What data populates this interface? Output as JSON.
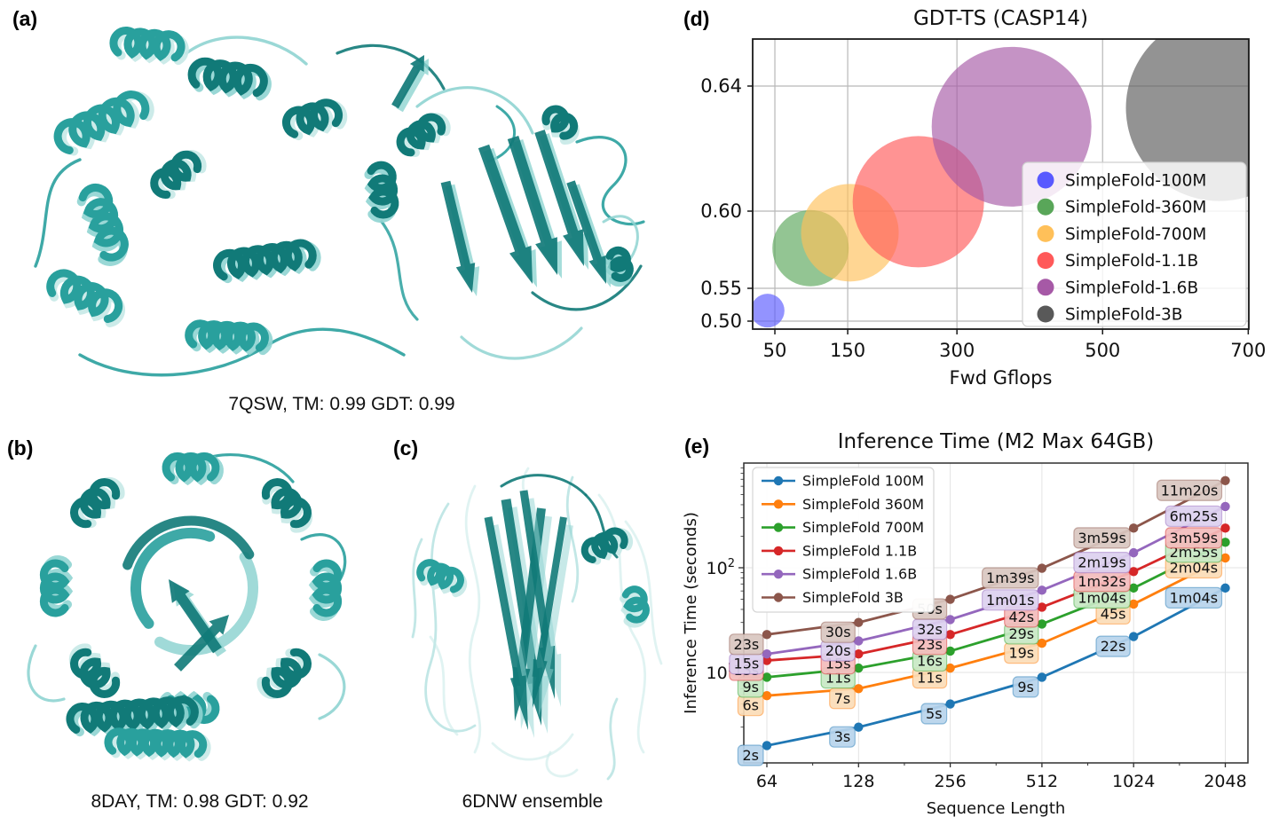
{
  "figure": {
    "background": "#ffffff"
  },
  "panels": {
    "a": {
      "letter": "(a)",
      "caption": "7QSW, TM: 0.99 GDT: 0.99"
    },
    "b": {
      "letter": "(b)",
      "caption": "8DAY, TM: 0.98 GDT: 0.92"
    },
    "c": {
      "letter": "(c)",
      "caption": "6DNW ensemble"
    },
    "d": {
      "letter": "(d)"
    },
    "e": {
      "letter": "(e)"
    }
  },
  "protein_colors": {
    "dark": "#117a78",
    "mid": "#29a09d",
    "light": "#8fd4d1",
    "pale": "#c6e9e7"
  },
  "chart_data": [
    {
      "id": "gdt_bubble",
      "type": "scatter",
      "title": "GDT-TS (CASP14)",
      "xlabel": "Fwd Gflops",
      "ylabel": "",
      "x_ticks": [
        50,
        150,
        300,
        500,
        700
      ],
      "x_tick_labels": [
        "50",
        "150",
        "300",
        "500",
        "700"
      ],
      "y_ticks": [
        0.5,
        0.55,
        0.6,
        0.64
      ],
      "y_tick_labels": [
        "0.50",
        "0.55",
        "0.60",
        "0.64"
      ],
      "xlim": [
        20,
        700
      ],
      "ylim": [
        0.497,
        0.66
      ],
      "grid": true,
      "legend_position": "lower right",
      "series": [
        {
          "name": "SimpleFold-100M",
          "color": "#5959ff",
          "x": 40,
          "y": 0.516,
          "size": 19
        },
        {
          "name": "SimpleFold-360M",
          "color": "#59a659",
          "x": 99,
          "y": 0.576,
          "size": 43
        },
        {
          "name": "SimpleFold-700M",
          "color": "#ffc059",
          "x": 153,
          "y": 0.586,
          "size": 55
        },
        {
          "name": "SimpleFold-1.1B",
          "color": "#ff5959",
          "x": 247,
          "y": 0.603,
          "size": 74
        },
        {
          "name": "SimpleFold-1.6B",
          "color": "#a659a6",
          "x": 375,
          "y": 0.627,
          "size": 90
        },
        {
          "name": "SimpleFold-3B",
          "color": "#595959",
          "x": 660,
          "y": 0.633,
          "size": 105
        }
      ]
    },
    {
      "id": "inference_time",
      "type": "line",
      "title": "Inference Time (M2 Max 64GB)",
      "xlabel": "Sequence Length",
      "ylabel": "Inference Time (seconds)",
      "x": [
        64,
        128,
        256,
        512,
        1024,
        2048
      ],
      "x_tick_labels": [
        "64",
        "128",
        "256",
        "512",
        "1024",
        "2048"
      ],
      "x_scale": "log2",
      "y_scale": "log10",
      "y_ticks": [
        10,
        100
      ],
      "y_tick_labels": [
        {
          "base": "10",
          "exp": "1"
        },
        {
          "base": "10",
          "exp": "2"
        }
      ],
      "ylim": [
        1.4,
        1000
      ],
      "grid": true,
      "legend_position": "upper left",
      "series": [
        {
          "name": "SimpleFold 100M",
          "color": "#1f77b4",
          "tint": "#b7d4ec",
          "values_s": [
            2,
            3,
            5,
            9,
            22,
            64
          ],
          "labels": [
            "2s",
            "3s",
            "5s",
            "9s",
            "22s",
            "1m04s"
          ]
        },
        {
          "name": "SimpleFold 360M",
          "color": "#ff7f0e",
          "tint": "#fbdcb7",
          "values_s": [
            6,
            7,
            11,
            19,
            45,
            124
          ],
          "labels": [
            "6s",
            "7s",
            "11s",
            "19s",
            "45s",
            "2m04s"
          ]
        },
        {
          "name": "SimpleFold 700M",
          "color": "#2ca02c",
          "tint": "#c8e8c4",
          "values_s": [
            9,
            11,
            16,
            29,
            64,
            175
          ],
          "labels": [
            "9s",
            "11s",
            "16s",
            "29s",
            "1m04s",
            "2m55s"
          ]
        },
        {
          "name": "SimpleFold 1.1B",
          "color": "#d62728",
          "tint": "#f3bcbc",
          "values_s": [
            13,
            15,
            23,
            42,
            92,
            239
          ],
          "labels": [
            "13s",
            "15s",
            "23s",
            "42s",
            "1m32s",
            "3m59s"
          ]
        },
        {
          "name": "SimpleFold 1.6B",
          "color": "#9467bd",
          "tint": "#dcd0ef",
          "values_s": [
            15,
            20,
            32,
            61,
            139,
            385
          ],
          "labels": [
            "15s",
            "20s",
            "32s",
            "1m01s",
            "2m19s",
            "6m25s"
          ]
        },
        {
          "name": "SimpleFold 3B",
          "color": "#8c564b",
          "tint": "#d9c7c0",
          "values_s": [
            23,
            30,
            50,
            99,
            239,
            680
          ],
          "labels": [
            "23s",
            "30s",
            "50s",
            "1m39s",
            "3m59s",
            "11m20s"
          ]
        }
      ]
    }
  ]
}
